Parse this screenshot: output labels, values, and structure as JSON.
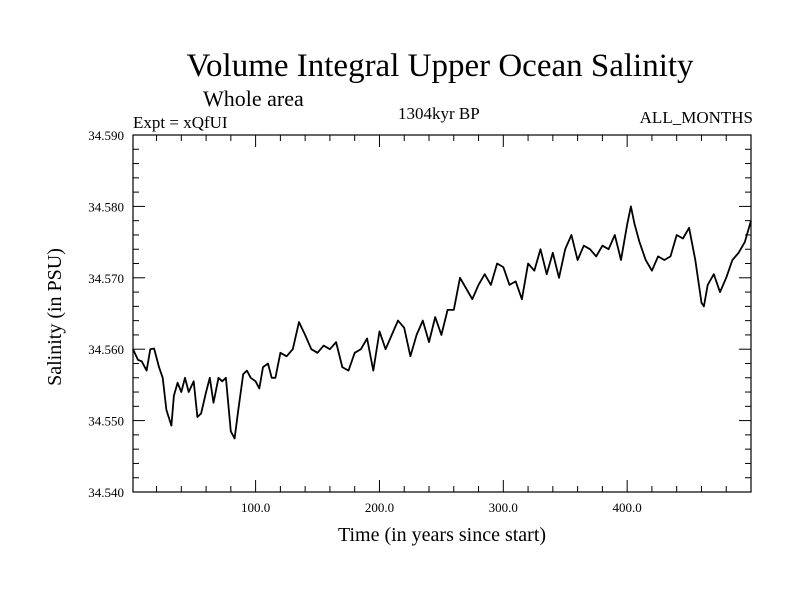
{
  "chart_data": {
    "type": "line",
    "title": "Volume Integral Upper Ocean Salinity",
    "subtitle": "Whole area",
    "experiment_label": "Expt = xQfUI",
    "period_label": "1304kyr BP",
    "months_label": "ALL_MONTHS",
    "xlabel": "Time (in years since start)",
    "ylabel": "Salinity (in PSU)",
    "xlim": [
      1,
      500
    ],
    "ylim": [
      34.54,
      34.59
    ],
    "x_ticks": [
      100,
      200,
      300,
      400
    ],
    "x_tick_labels": [
      "100.0",
      "200.0",
      "300.0",
      "400.0"
    ],
    "y_ticks": [
      34.54,
      34.55,
      34.56,
      34.57,
      34.58,
      34.59
    ],
    "y_tick_labels": [
      "34.540",
      "34.550",
      "34.560",
      "34.570",
      "34.580",
      "34.590"
    ],
    "grid": false,
    "series": [
      {
        "name": "Salinity",
        "x": [
          1,
          5,
          8,
          12,
          15,
          18,
          22,
          25,
          28,
          32,
          34,
          37,
          40,
          43,
          46,
          50,
          53,
          56,
          60,
          63,
          66,
          70,
          73,
          76,
          80,
          83,
          86,
          90,
          93,
          96,
          100,
          103,
          106,
          110,
          113,
          116,
          120,
          125,
          130,
          135,
          140,
          145,
          150,
          155,
          160,
          165,
          170,
          175,
          180,
          185,
          190,
          195,
          200,
          205,
          210,
          215,
          220,
          225,
          230,
          235,
          240,
          245,
          250,
          255,
          260,
          265,
          270,
          275,
          280,
          285,
          290,
          295,
          300,
          305,
          310,
          315,
          320,
          325,
          330,
          335,
          340,
          345,
          350,
          355,
          360,
          365,
          370,
          375,
          380,
          385,
          390,
          395,
          400,
          403,
          406,
          410,
          415,
          420,
          425,
          430,
          435,
          440,
          445,
          450,
          455,
          460,
          462,
          465,
          470,
          475,
          480,
          485,
          490,
          495,
          500
        ],
        "values": [
          34.56,
          34.5585,
          34.5583,
          34.557,
          34.56,
          34.5601,
          34.5575,
          34.556,
          34.5515,
          34.5493,
          34.5535,
          34.5553,
          34.554,
          34.556,
          34.554,
          34.5555,
          34.5505,
          34.551,
          34.554,
          34.556,
          34.5525,
          34.556,
          34.5555,
          34.556,
          34.5485,
          34.5475,
          34.5515,
          34.5565,
          34.557,
          34.556,
          34.5555,
          34.5545,
          34.5575,
          34.558,
          34.556,
          34.556,
          34.5595,
          34.559,
          34.56,
          34.5638,
          34.562,
          34.56,
          34.5595,
          34.5605,
          34.56,
          34.561,
          34.5575,
          34.557,
          34.5595,
          34.56,
          34.5615,
          34.557,
          34.5625,
          34.56,
          34.562,
          34.564,
          34.563,
          34.559,
          34.562,
          34.564,
          34.561,
          34.5645,
          34.562,
          34.5655,
          34.5655,
          34.57,
          34.5685,
          34.567,
          34.569,
          34.5705,
          34.569,
          34.572,
          34.5715,
          34.569,
          34.5695,
          34.567,
          34.572,
          34.571,
          34.574,
          34.5705,
          34.5735,
          34.57,
          34.574,
          34.576,
          34.5725,
          34.5745,
          34.574,
          34.573,
          34.5745,
          34.574,
          34.576,
          34.5725,
          34.5775,
          34.58,
          34.5775,
          34.575,
          34.5725,
          34.571,
          34.573,
          34.5725,
          34.573,
          34.576,
          34.5755,
          34.577,
          34.5725,
          34.5665,
          34.566,
          34.569,
          34.5705,
          34.568,
          34.57,
          34.5725,
          34.5735,
          34.575,
          34.578
        ]
      }
    ]
  }
}
